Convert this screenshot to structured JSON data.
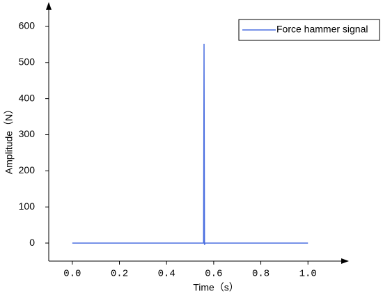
{
  "chart_data": {
    "type": "line",
    "x_label": "Time（s）",
    "y_label": "Amplitude（N）",
    "xlim": [
      -0.1,
      1.15
    ],
    "ylim": [
      -50,
      650
    ],
    "xticks": [
      {
        "value": 0,
        "label": "0.0"
      },
      {
        "value": 0.2,
        "label": "0.2"
      },
      {
        "value": 0.4,
        "label": "0.4"
      },
      {
        "value": 0.6,
        "label": "0.6"
      },
      {
        "value": 0.8,
        "label": "0.8"
      },
      {
        "value": 1,
        "label": "1.0"
      }
    ],
    "yticks": [
      0,
      100,
      200,
      300,
      400,
      500,
      600
    ],
    "legend": "top-right",
    "series": [
      {
        "name": "Force hammer signal",
        "color": "#4a6ee0",
        "x": [
          0,
          0.557,
          0.559,
          0.561,
          0.563,
          1.0
        ],
        "values": [
          0,
          0,
          552,
          -5,
          0,
          0
        ]
      }
    ]
  }
}
